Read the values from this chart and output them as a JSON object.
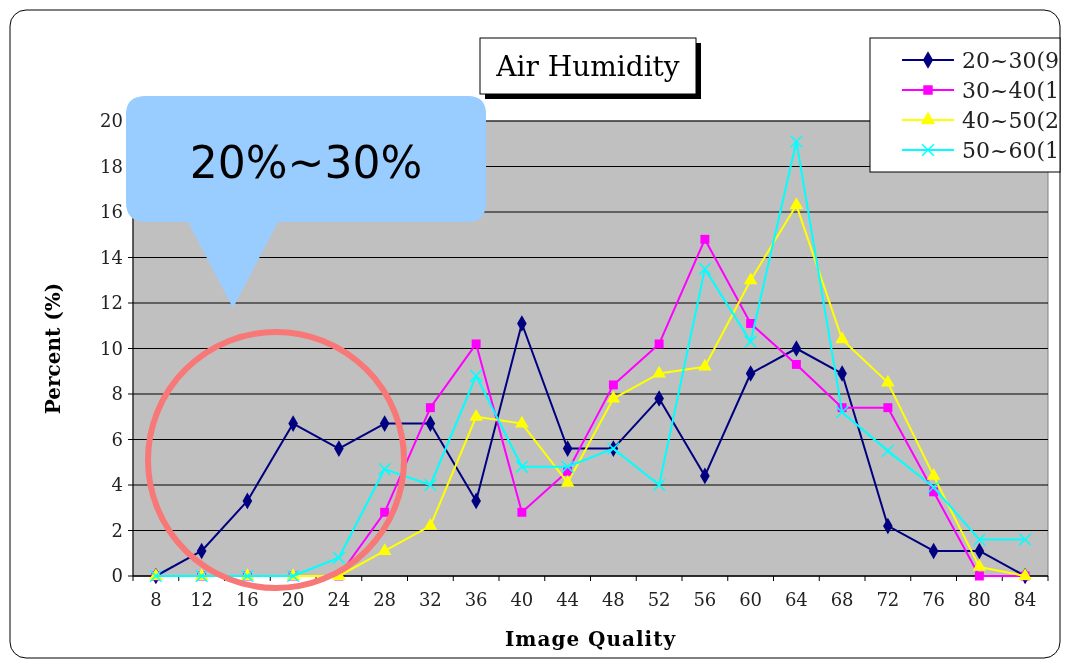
{
  "chart_data": {
    "type": "line",
    "title": "Air Humidity",
    "xlabel": "Image Quality",
    "ylabel": "Percent (%)",
    "categories": [
      "8",
      "12",
      "16",
      "20",
      "24",
      "28",
      "32",
      "36",
      "40",
      "44",
      "48",
      "52",
      "56",
      "60",
      "64",
      "68",
      "72",
      "76",
      "80",
      "84"
    ],
    "series": [
      {
        "name": "20~30(9",
        "color": "#000080",
        "marker": "diamond",
        "values": [
          0,
          1.1,
          3.3,
          6.7,
          5.6,
          6.7,
          6.7,
          3.3,
          11.1,
          5.6,
          5.6,
          7.8,
          4.4,
          8.9,
          10,
          8.9,
          2.2,
          1.1,
          1.1,
          0
        ]
      },
      {
        "name": "30~40(1",
        "color": "#ff00ff",
        "marker": "square",
        "values": [
          0,
          0,
          0,
          0,
          0,
          2.8,
          7.4,
          10.2,
          2.8,
          4.6,
          8.4,
          10.2,
          14.8,
          11.1,
          9.3,
          7.4,
          7.4,
          3.7,
          0,
          0
        ]
      },
      {
        "name": "40~50(2",
        "color": "#ffff00",
        "marker": "triangle",
        "values": [
          0,
          0,
          0,
          0,
          0,
          1.1,
          2.2,
          7,
          6.7,
          4.1,
          7.8,
          8.9,
          9.2,
          13,
          16.3,
          10.4,
          8.5,
          4.4,
          0.4,
          0
        ]
      },
      {
        "name": "50~60(1",
        "color": "#00ffff",
        "marker": "cross",
        "values": [
          0,
          0,
          0,
          0,
          0.8,
          4.7,
          4,
          8.8,
          4.8,
          4.8,
          5.6,
          4,
          13.5,
          10.3,
          19.1,
          7.2,
          5.5,
          3.9,
          1.6,
          1.6
        ]
      }
    ],
    "ylim": [
      0,
      20
    ],
    "yticks": [
      0,
      2,
      4,
      6,
      8,
      10,
      12,
      14,
      16,
      18,
      20
    ],
    "grid": "y",
    "legend": "top right",
    "annotations": [
      "20%~30%"
    ]
  }
}
